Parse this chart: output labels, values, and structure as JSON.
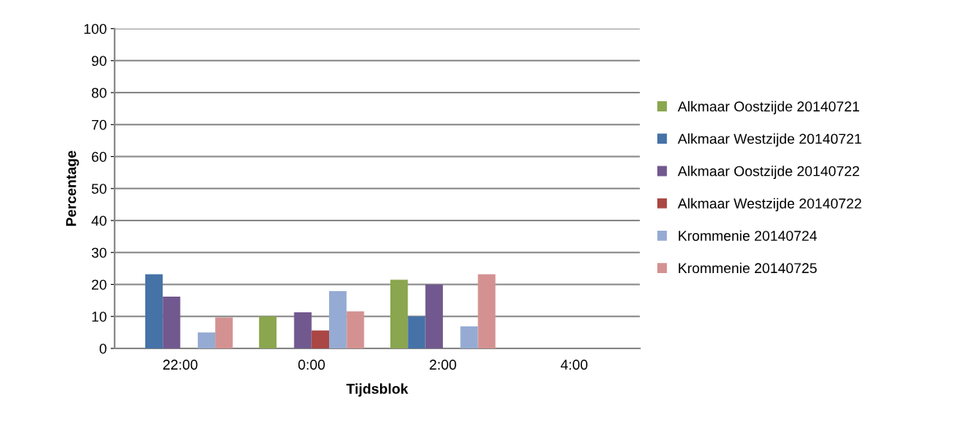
{
  "chart_data": {
    "type": "bar",
    "xlabel": "Tijdsblok",
    "ylabel": "Percentage",
    "categories": [
      "22:00",
      "0:00",
      "2:00",
      "4:00"
    ],
    "series": [
      {
        "name": "Alkmaar Oostzijde 20140721",
        "color": "#8aa64e",
        "values": [
          0,
          10,
          21.5,
          0
        ]
      },
      {
        "name": "Alkmaar Westzijde 20140721",
        "color": "#4572a7",
        "values": [
          23.2,
          0,
          10,
          0
        ]
      },
      {
        "name": "Alkmaar Oostzijde 20140722",
        "color": "#71588f",
        "values": [
          16.2,
          11.3,
          20,
          0
        ]
      },
      {
        "name": "Alkmaar Westzijde 20140722",
        "color": "#aa4643",
        "values": [
          0,
          5.6,
          0,
          0
        ]
      },
      {
        "name": "Krommenie 20140724",
        "color": "#95abd3",
        "values": [
          5,
          17.9,
          6.9,
          0
        ]
      },
      {
        "name": "Krommenie 20140725",
        "color": "#d39291",
        "values": [
          9.7,
          11.6,
          23.2,
          0
        ]
      }
    ],
    "ylim": [
      0,
      100
    ],
    "yticks": [
      0,
      10,
      20,
      30,
      40,
      50,
      60,
      70,
      80,
      90,
      100
    ],
    "grid": "y",
    "legend": "right"
  }
}
